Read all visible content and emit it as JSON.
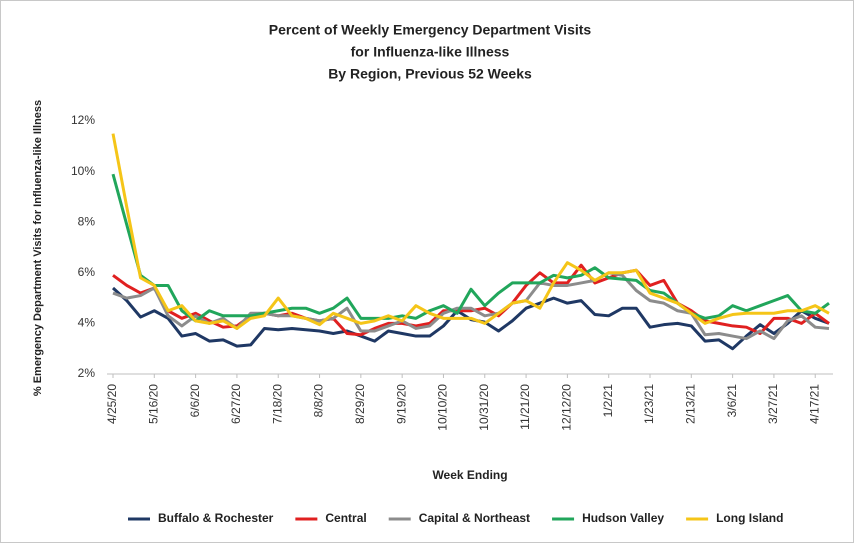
{
  "chart_data": {
    "type": "line",
    "title": [
      "Percent of Weekly Emergency Department Visits",
      "for Influenza-like Illness",
      "By Region, Previous 52 Weeks"
    ],
    "y_label": "% Emergency Department Visits for Influenza-like Illness",
    "x_label": "Week Ending",
    "categories": [
      "4/25/20",
      null,
      null,
      "5/16/20",
      null,
      null,
      "6/6/20",
      null,
      null,
      "6/27/20",
      null,
      null,
      "7/18/20",
      null,
      null,
      "8/8/20",
      null,
      null,
      "8/29/20",
      null,
      null,
      "9/19/20",
      null,
      null,
      "10/10/20",
      null,
      null,
      "10/31/20",
      null,
      null,
      "11/21/20",
      null,
      null,
      "12/12/20",
      null,
      null,
      "1/2/21",
      null,
      null,
      "1/23/21",
      null,
      null,
      "2/13/21",
      null,
      null,
      "3/6/21",
      null,
      null,
      "3/27/21",
      null,
      null,
      "4/17/21",
      null
    ],
    "ylim": [
      2,
      12
    ],
    "yticks": [
      {
        "value": 2,
        "label": "2%"
      },
      {
        "value": 4,
        "label": "4%"
      },
      {
        "value": 6,
        "label": "6%"
      },
      {
        "value": 8,
        "label": "8%"
      },
      {
        "value": 10,
        "label": "10%"
      },
      {
        "value": 12,
        "label": "12%"
      }
    ],
    "legend": "bottom",
    "series": [
      {
        "name": "Buffalo & Rochester",
        "color": "#1f3864",
        "values": [
          5.4,
          4.9,
          4.25,
          4.5,
          4.2,
          3.5,
          3.6,
          3.3,
          3.35,
          3.1,
          3.15,
          3.8,
          3.75,
          3.8,
          3.75,
          3.7,
          3.6,
          3.7,
          3.5,
          3.3,
          3.7,
          3.6,
          3.5,
          3.5,
          3.9,
          4.5,
          4.15,
          4.05,
          3.7,
          4.1,
          4.6,
          4.8,
          5.0,
          4.8,
          4.9,
          4.35,
          4.3,
          4.6,
          4.6,
          3.85,
          3.95,
          4.0,
          3.9,
          3.3,
          3.35,
          3.0,
          3.5,
          3.95,
          3.6,
          4.0,
          4.5,
          4.2,
          4.0
        ]
      },
      {
        "name": "Central",
        "color": "#e02020",
        "values": [
          5.9,
          5.5,
          5.2,
          5.4,
          4.5,
          4.2,
          4.4,
          4.1,
          3.85,
          3.9,
          4.3,
          4.4,
          4.3,
          4.4,
          4.2,
          4.1,
          4.2,
          3.6,
          3.55,
          3.8,
          4.0,
          4.0,
          3.9,
          4.0,
          4.5,
          4.5,
          4.5,
          4.6,
          4.3,
          4.8,
          5.5,
          6.0,
          5.6,
          5.6,
          6.3,
          5.6,
          5.8,
          6.0,
          6.1,
          5.5,
          5.7,
          4.8,
          4.5,
          4.1,
          4.0,
          3.9,
          3.85,
          3.6,
          4.2,
          4.2,
          4.0,
          4.4,
          4.0
        ]
      },
      {
        "name": "Capital & Northeast",
        "color": "#8c8c8c",
        "values": [
          5.2,
          5.0,
          5.1,
          5.4,
          4.3,
          3.9,
          4.3,
          4.0,
          4.2,
          3.8,
          4.4,
          4.4,
          4.3,
          4.3,
          4.2,
          4.1,
          4.2,
          4.6,
          3.7,
          3.7,
          3.9,
          4.1,
          3.8,
          3.9,
          4.4,
          4.6,
          4.6,
          4.3,
          4.4,
          4.8,
          4.9,
          5.6,
          5.5,
          5.5,
          5.6,
          5.7,
          6.0,
          5.9,
          5.3,
          4.9,
          4.8,
          4.5,
          4.4,
          3.55,
          3.6,
          3.5,
          3.4,
          3.7,
          3.4,
          4.1,
          4.3,
          3.85,
          3.8
        ]
      },
      {
        "name": "Hudson Valley",
        "color": "#21a65b",
        "values": [
          9.9,
          7.9,
          5.9,
          5.5,
          5.5,
          4.5,
          4.1,
          4.5,
          4.3,
          4.3,
          4.3,
          4.4,
          4.5,
          4.6,
          4.6,
          4.4,
          4.6,
          5.0,
          4.2,
          4.2,
          4.2,
          4.3,
          4.2,
          4.5,
          4.7,
          4.4,
          5.35,
          4.7,
          5.2,
          5.6,
          5.6,
          5.6,
          5.9,
          5.8,
          5.9,
          6.2,
          5.8,
          5.75,
          5.7,
          5.3,
          5.2,
          4.8,
          4.4,
          4.2,
          4.3,
          4.7,
          4.5,
          4.7,
          4.9,
          5.1,
          4.5,
          4.4,
          4.8
        ]
      },
      {
        "name": "Long Island",
        "color": "#f5c518",
        "values": [
          11.5,
          8.6,
          5.8,
          5.5,
          4.5,
          4.7,
          4.1,
          4.0,
          4.1,
          3.8,
          4.2,
          4.3,
          5.0,
          4.3,
          4.2,
          3.95,
          4.4,
          4.2,
          4.0,
          4.1,
          4.3,
          4.1,
          4.7,
          4.4,
          4.2,
          4.2,
          4.2,
          4.0,
          4.4,
          4.8,
          4.9,
          4.6,
          5.6,
          6.4,
          6.1,
          5.7,
          6.0,
          6.0,
          6.1,
          5.2,
          5.0,
          4.8,
          4.4,
          4.0,
          4.2,
          4.35,
          4.4,
          4.4,
          4.4,
          4.5,
          4.5,
          4.7,
          4.4
        ]
      }
    ]
  }
}
